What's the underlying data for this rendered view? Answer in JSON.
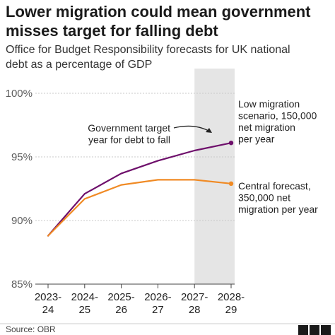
{
  "title_lines": [
    "Lower migration could mean government",
    "misses target for falling debt"
  ],
  "subtitle_lines": [
    "Office for Budget Responsibility forecasts for UK national",
    "debt as a percentage of GDP"
  ],
  "source": "Source: OBR",
  "logo": "BBC",
  "colors": {
    "low_migration": "#6e0f6b",
    "central": "#f08a24",
    "highlight_band": "#e5e5e5",
    "grid": "#c9c9c9"
  },
  "chart_data": {
    "type": "line",
    "x": [
      "2023-24",
      "2024-25",
      "2025-26",
      "2026-27",
      "2027-28",
      "2028-29"
    ],
    "x_tick_lines": [
      [
        "2023-",
        "24"
      ],
      [
        "2024-",
        "25"
      ],
      [
        "2025-",
        "26"
      ],
      [
        "2026-",
        "27"
      ],
      [
        "2027-",
        "28"
      ],
      [
        "2028-",
        "29"
      ]
    ],
    "y_ticks": [
      85,
      90,
      95,
      100
    ],
    "y_tick_labels": [
      "85%",
      "90%",
      "95%",
      "100%"
    ],
    "ylim": [
      85,
      100
    ],
    "grid": true,
    "highlight_category": "2028-29",
    "series": [
      {
        "key": "low_migration",
        "values": [
          88.8,
          92.1,
          93.7,
          94.7,
          95.5,
          96.1
        ],
        "label_lines": [
          "Low migration",
          "scenario, 150,000",
          "net migration",
          "per year"
        ],
        "end_marker": true
      },
      {
        "key": "central",
        "values": [
          88.8,
          91.7,
          92.8,
          93.2,
          93.2,
          92.9
        ],
        "label_lines": [
          "Central forecast,",
          "350,000 net",
          "migration per year"
        ],
        "end_marker": true
      }
    ],
    "annotation": {
      "lines": [
        "Government target",
        "year for debt to fall"
      ]
    }
  }
}
